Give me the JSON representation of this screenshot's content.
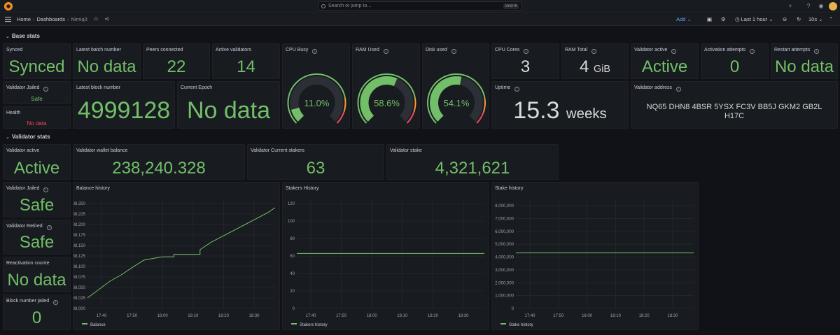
{
  "topbar": {
    "search_placeholder": "Search or jump to...",
    "search_shortcut": "cmd+k",
    "icons": [
      "plus-icon",
      "help-icon",
      "rss-icon",
      "avatar"
    ]
  },
  "navbar": {
    "breadcrumbs": [
      "Home",
      "Dashboards",
      "Nimiq3"
    ],
    "add_label": "Add",
    "time_range": "Last 1 hour",
    "refresh_interval": "10s"
  },
  "rows": {
    "base": "Base stats",
    "validator": "Validator stats"
  },
  "panels": {
    "synced": {
      "title": "Synced",
      "value": "Synced"
    },
    "latest_batch": {
      "title": "Latest batch number",
      "value": "No data"
    },
    "peers": {
      "title": "Peers connected",
      "value": "22"
    },
    "active_validators": {
      "title": "Active validators",
      "value": "14"
    },
    "cpu_busy": {
      "title": "CPU Busy",
      "value": "11.0%",
      "fraction": 0.11
    },
    "ram_used": {
      "title": "RAM Used",
      "value": "58.6%",
      "fraction": 0.586
    },
    "disk_used": {
      "title": "Disk used",
      "value": "54.1%",
      "fraction": 0.541
    },
    "cpu_cores": {
      "title": "CPU Cores",
      "value": "3"
    },
    "ram_total": {
      "title": "RAM Total",
      "value": "4",
      "unit": "GiB"
    },
    "validator_active_base": {
      "title": "Validator active",
      "value": "Active"
    },
    "activation_attempts": {
      "title": "Activation attempts",
      "value": "0"
    },
    "restart_attempts": {
      "title": "Restart attempts",
      "value": "No data"
    },
    "validator_jailed_base": {
      "title": "Validator Jailed",
      "value": "Safe"
    },
    "latest_block": {
      "title": "Latest block number",
      "value": "4999128"
    },
    "current_epoch": {
      "title": "Current Epoch",
      "value": "No data"
    },
    "uptime": {
      "title": "Uptime",
      "value": "15.3",
      "unit": "weeks"
    },
    "validator_address": {
      "title": "Validator address",
      "value_line1": "NQ65 DHN8 4BSR 5YSX FC3V BB5J GKM2 GB2L",
      "value_line2": "H17C"
    },
    "health": {
      "title": "Health",
      "value": "No data"
    },
    "validator_active": {
      "title": "Validator active",
      "value": "Active"
    },
    "wallet_balance": {
      "title": "Validator wallet balance",
      "value": "238,240.328"
    },
    "current_stakers": {
      "title": "Validator Current stakers",
      "value": "63"
    },
    "stake": {
      "title": "Validator stake",
      "value": "4,321,621"
    },
    "validator_jailed": {
      "title": "Validator Jailed",
      "value": "Safe"
    },
    "validator_retired": {
      "title": "Validator Retired",
      "value": "Safe"
    },
    "reactivation": {
      "title": "Reactivation counte",
      "value": "No data"
    },
    "block_jailed": {
      "title": "Block number jailed",
      "value": "0"
    }
  },
  "colors": {
    "green": "#73bf69",
    "red": "#f2495c",
    "orange": "#ff9830",
    "panel_bg": "#181b1f",
    "page_bg": "#111217"
  },
  "chart_data": [
    {
      "type": "line",
      "title": "Balance history",
      "x_ticks": [
        "17:40",
        "17:50",
        "18:00",
        "18:10",
        "18:20",
        "18:30"
      ],
      "y_ticks": [
        "238,000",
        "238,025",
        "238,050",
        "238,075",
        "238,100",
        "238,125",
        "238,150",
        "238,175",
        "238,200",
        "238,225",
        "238,250"
      ],
      "ylim": [
        238000,
        238260
      ],
      "grid": true,
      "legend": "bottom-left",
      "series": [
        {
          "name": "Balance",
          "x": [
            0,
            0.06,
            0.12,
            0.18,
            0.24,
            0.3,
            0.36,
            0.4,
            0.4,
            0.46,
            0.46,
            0.6,
            0.6,
            0.66,
            0.72,
            0.78,
            0.84,
            0.9,
            0.96,
            1.0
          ],
          "values": [
            238025,
            238045,
            238065,
            238080,
            238098,
            238115,
            238120,
            238123,
            238123,
            238123,
            238129,
            238129,
            238140,
            238158,
            238172,
            238186,
            238200,
            238214,
            238228,
            238240
          ]
        }
      ]
    },
    {
      "type": "line",
      "title": "Stakers History",
      "x_ticks": [
        "17:40",
        "17:50",
        "18:00",
        "18:10",
        "18:20",
        "18:30"
      ],
      "y_ticks": [
        "0",
        "20",
        "40",
        "60",
        "80",
        "100",
        "120"
      ],
      "ylim": [
        0,
        125
      ],
      "grid": true,
      "legend": "bottom-left",
      "series": [
        {
          "name": "Stakers history",
          "x": [
            0,
            1
          ],
          "values": [
            63,
            63
          ]
        }
      ]
    },
    {
      "type": "line",
      "title": "Stake history",
      "x_ticks": [
        "17:40",
        "17:50",
        "18:00",
        "18:10",
        "18:20",
        "18:30"
      ],
      "y_ticks": [
        "0",
        "1,000,000",
        "2,000,000",
        "3,000,000",
        "4,000,000",
        "5,000,000",
        "6,000,000",
        "7,000,000",
        "8,000,000"
      ],
      "ylim": [
        0,
        8500000
      ],
      "grid": true,
      "legend": "bottom-left",
      "series": [
        {
          "name": "Stake history",
          "x": [
            0,
            1
          ],
          "values": [
            4321621,
            4321621
          ]
        }
      ]
    }
  ]
}
